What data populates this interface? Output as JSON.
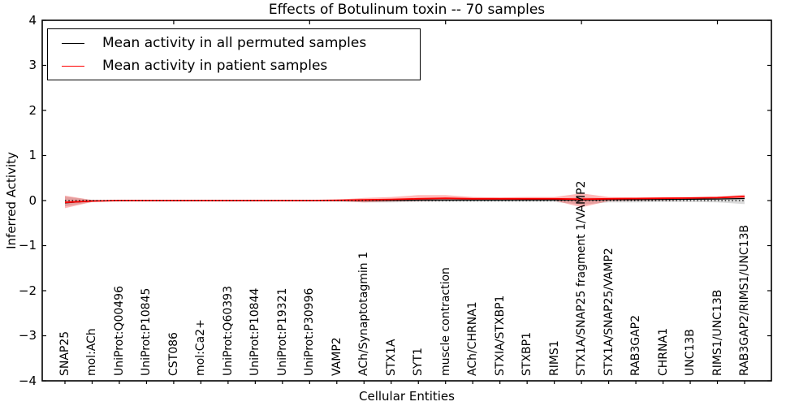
{
  "title": "Effects of Botulinum toxin -- 70 samples",
  "legend": {
    "items": [
      {
        "label": "Mean activity in all permuted samples",
        "color": "#000000"
      },
      {
        "label": "Mean activity in patient samples",
        "color": "#ff0000"
      }
    ]
  },
  "chart_data": {
    "type": "line",
    "title": "Effects of Botulinum toxin -- 70 samples",
    "xlabel": "Cellular Entities",
    "ylabel": "Inferred Activity",
    "ylim": [
      -4,
      4
    ],
    "ytick_labels": [
      "4",
      "3",
      "2",
      "1",
      "0",
      "−1",
      "−2",
      "−3",
      "−4"
    ],
    "grid": false,
    "legend_position": "upper left",
    "zero_reference_line": "dotted black at y=0",
    "categories": [
      "SNAP25",
      "mol:ACh",
      "UniProt:Q00496",
      "UniProt:P10845",
      "CST086",
      "mol:Ca2+",
      "UniProt:Q60393",
      "UniProt:P10844",
      "UniProt:P19321",
      "UniProt:P30996",
      "VAMP2",
      "ACh/Synaptotagmin 1",
      "STX1A",
      "SYT1",
      "muscle contraction",
      "ACh/CHRNA1",
      "STXIA/STXBP1",
      "STXBP1",
      "RIMS1",
      "STX1A/SNAP25 fragment 1/VAMP2",
      "STX1A/SNAP25/VAMP2",
      "RAB3GAP2",
      "CHRNA1",
      "UNC13B",
      "RIMS1/UNC13B",
      "RAB3GAP2/RIMS1/UNC13B"
    ],
    "series": [
      {
        "name": "Mean activity in all permuted samples",
        "slug": "permuted-mean",
        "color": "#000000",
        "width": 1.3,
        "values": [
          -0.05,
          -0.005,
          0,
          0,
          0,
          0,
          0,
          0,
          0,
          0,
          0,
          0.005,
          0.005,
          0.01,
          0.01,
          0.01,
          0.01,
          0.015,
          0.015,
          0.015,
          0.02,
          0.02,
          0.025,
          0.03,
          0.035,
          0.045
        ]
      },
      {
        "name": "Mean activity in patient samples",
        "slug": "patient-mean",
        "color": "#ff0000",
        "width": 1.8,
        "values": [
          -0.04,
          -0.01,
          0,
          0,
          0,
          0,
          0,
          0,
          0,
          0,
          0.005,
          0.015,
          0.025,
          0.04,
          0.05,
          0.04,
          0.04,
          0.04,
          0.04,
          0.03,
          0.04,
          0.045,
          0.05,
          0.055,
          0.065,
          0.09
        ]
      }
    ],
    "bands": [
      {
        "name": "permuted-range",
        "color": "#000000",
        "alpha": 0.14,
        "upper": [
          0.09,
          0.015,
          0.005,
          0.005,
          0.005,
          0.005,
          0.005,
          0.005,
          0.005,
          0.005,
          0.01,
          0.02,
          0.03,
          0.04,
          0.05,
          0.04,
          0.04,
          0.04,
          0.04,
          0.07,
          0.05,
          0.05,
          0.05,
          0.06,
          0.07,
          0.11
        ],
        "lower": [
          -0.13,
          -0.03,
          -0.01,
          -0.01,
          -0.01,
          -0.01,
          -0.01,
          -0.01,
          -0.01,
          -0.01,
          -0.02,
          -0.04,
          -0.04,
          -0.03,
          -0.03,
          -0.03,
          -0.03,
          -0.03,
          -0.03,
          -0.09,
          -0.04,
          -0.04,
          -0.03,
          -0.03,
          -0.04,
          -0.08
        ]
      },
      {
        "name": "patient-range",
        "color": "#ff0000",
        "alpha": 0.28,
        "upper": [
          0.11,
          0.01,
          0.005,
          0.005,
          0.005,
          0.005,
          0.005,
          0.005,
          0.005,
          0.005,
          0.02,
          0.06,
          0.08,
          0.12,
          0.12,
          0.08,
          0.07,
          0.08,
          0.08,
          0.16,
          0.08,
          0.07,
          0.08,
          0.08,
          0.09,
          0.13
        ],
        "lower": [
          -0.17,
          -0.03,
          -0.005,
          -0.005,
          -0.005,
          -0.005,
          -0.005,
          -0.005,
          -0.005,
          -0.005,
          -0.01,
          -0.04,
          -0.02,
          -0.01,
          0.0,
          0.0,
          0.0,
          0.0,
          0.0,
          -0.15,
          -0.01,
          0.0,
          0.01,
          0.02,
          0.03,
          0.05
        ]
      }
    ]
  }
}
